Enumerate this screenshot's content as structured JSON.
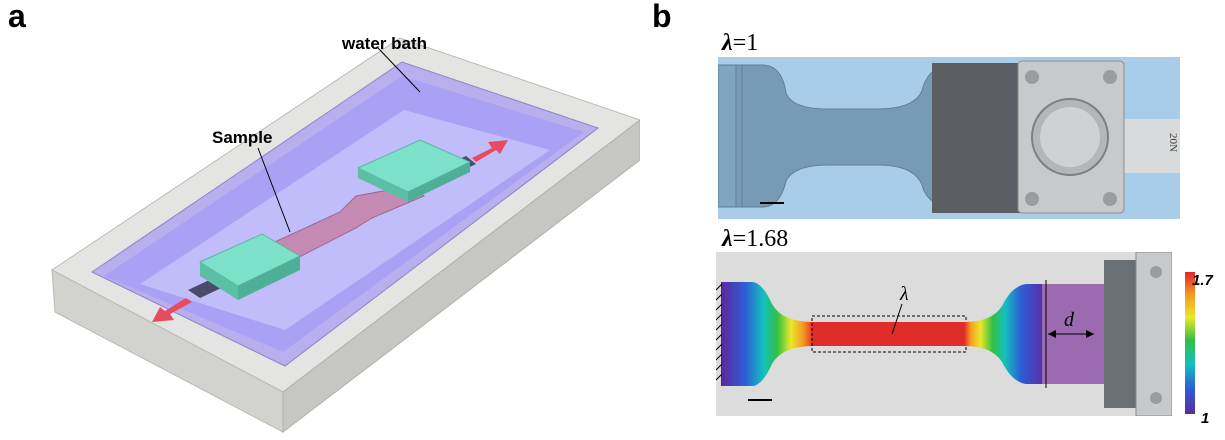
{
  "panel_a": {
    "letter": "a",
    "labels": {
      "water_bath": "water bath",
      "sample": "Sample"
    }
  },
  "panel_b": {
    "letter": "b",
    "top_photo": {
      "lambda_symbol": "λ",
      "lambda_value": "=1",
      "stamp_text": "20N"
    },
    "bottom_photo": {
      "lambda_symbol": "λ",
      "lambda_value": "=1.68",
      "region_label": "λ",
      "d_label": "d"
    },
    "colorbar": {
      "max_label": "1.7",
      "min_label": "1",
      "colors": [
        "#5b2aa0",
        "#2f5bd6",
        "#13c0c0",
        "#31c043",
        "#e9e82c",
        "#f59b1f",
        "#e2262a"
      ]
    }
  },
  "colors": {
    "bath_frame": "#dcdcda",
    "water": "#9a8ff0",
    "sample": "#c48ab4",
    "grip": "#7de0c8",
    "arrow": "#e84a5f",
    "photo_bg": "#a9cde8",
    "strain_red": "#e8322f"
  }
}
